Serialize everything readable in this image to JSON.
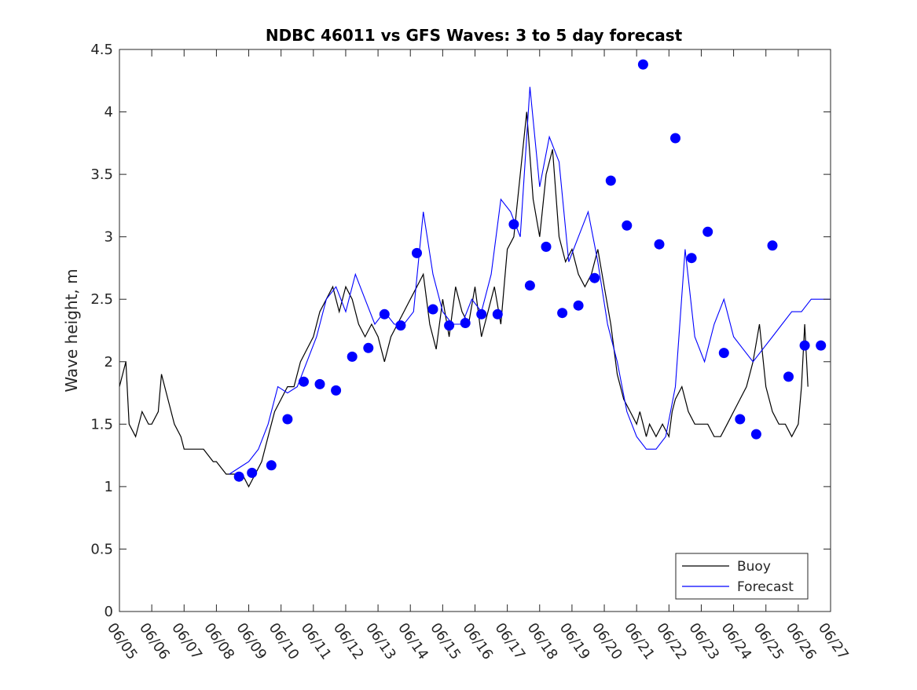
{
  "chart_data": {
    "type": "line",
    "title": "NDBC 46011 vs GFS Waves: 3 to 5 day forecast",
    "xlabel": "",
    "ylabel": "Wave height, m",
    "x_ticks": [
      "06/05",
      "06/06",
      "06/07",
      "06/08",
      "06/09",
      "06/10",
      "06/11",
      "06/12",
      "06/13",
      "06/14",
      "06/15",
      "06/16",
      "06/17",
      "06/18",
      "06/19",
      "06/20",
      "06/21",
      "06/22",
      "06/23",
      "06/24",
      "06/25",
      "06/26",
      "06/27"
    ],
    "y_ticks": [
      "0",
      "0.5",
      "1",
      "1.5",
      "2",
      "2.5",
      "3",
      "3.5",
      "4",
      "4.5"
    ],
    "xlim": [
      0,
      22
    ],
    "ylim": [
      0,
      4.5
    ],
    "grid": false,
    "legend": {
      "position": "bottom-right",
      "entries": [
        "Buoy",
        "Forecast"
      ]
    },
    "colors": {
      "buoy": "#000000",
      "forecast": "#0000ff",
      "markers": "#0000ff",
      "axes": "#262626"
    },
    "series": [
      {
        "name": "Buoy",
        "x_days_from_0605": [
          0,
          0.1,
          0.2,
          0.3,
          0.5,
          0.7,
          0.9,
          1.0,
          1.2,
          1.3,
          1.5,
          1.7,
          1.9,
          2.0,
          2.3,
          2.6,
          2.9,
          3.0,
          3.3,
          3.6,
          3.8,
          4.0,
          4.2,
          4.4,
          4.6,
          4.8,
          5.0,
          5.2,
          5.4,
          5.6,
          5.8,
          6.0,
          6.2,
          6.4,
          6.6,
          6.8,
          7.0,
          7.2,
          7.4,
          7.6,
          7.8,
          8.0,
          8.2,
          8.4,
          8.6,
          8.8,
          9.0,
          9.2,
          9.4,
          9.6,
          9.8,
          10.0,
          10.2,
          10.4,
          10.6,
          10.8,
          11.0,
          11.2,
          11.4,
          11.6,
          11.8,
          12.0,
          12.2,
          12.4,
          12.6,
          12.8,
          13.0,
          13.2,
          13.4,
          13.6,
          13.8,
          14.0,
          14.2,
          14.4,
          14.6,
          14.8,
          15.0,
          15.2,
          15.4,
          15.6,
          15.8,
          16.0,
          16.1,
          16.2,
          16.3,
          16.4,
          16.6,
          16.8,
          17.0,
          17.1,
          17.2,
          17.4,
          17.6,
          17.8,
          18.0,
          18.2,
          18.4,
          18.6,
          18.8,
          19.0,
          19.2,
          19.4,
          19.6,
          19.8,
          20.0,
          20.2,
          20.4,
          20.6,
          20.8,
          21.0,
          21.1,
          21.2,
          21.3
        ],
        "y": [
          1.8,
          1.9,
          2.0,
          1.5,
          1.4,
          1.6,
          1.5,
          1.5,
          1.6,
          1.9,
          1.7,
          1.5,
          1.4,
          1.3,
          1.3,
          1.3,
          1.2,
          1.2,
          1.1,
          1.1,
          1.1,
          1.0,
          1.1,
          1.2,
          1.4,
          1.6,
          1.7,
          1.8,
          1.8,
          2.0,
          2.1,
          2.2,
          2.4,
          2.5,
          2.6,
          2.4,
          2.6,
          2.5,
          2.3,
          2.2,
          2.3,
          2.2,
          2.0,
          2.2,
          2.3,
          2.4,
          2.5,
          2.6,
          2.7,
          2.3,
          2.1,
          2.5,
          2.2,
          2.6,
          2.4,
          2.3,
          2.6,
          2.2,
          2.4,
          2.6,
          2.3,
          2.9,
          3.0,
          3.5,
          4.0,
          3.3,
          3.0,
          3.5,
          3.7,
          3.0,
          2.8,
          2.9,
          2.7,
          2.6,
          2.7,
          2.9,
          2.6,
          2.3,
          1.9,
          1.7,
          1.6,
          1.5,
          1.6,
          1.5,
          1.4,
          1.5,
          1.4,
          1.5,
          1.4,
          1.6,
          1.7,
          1.8,
          1.6,
          1.5,
          1.5,
          1.5,
          1.4,
          1.4,
          1.5,
          1.6,
          1.7,
          1.8,
          2.0,
          2.3,
          1.8,
          1.6,
          1.5,
          1.5,
          1.4,
          1.5,
          1.8,
          2.3,
          1.8
        ]
      },
      {
        "name": "Forecast",
        "x_days_from_0605": [
          3.4,
          3.7,
          4.0,
          4.3,
          4.6,
          4.9,
          5.2,
          5.5,
          5.8,
          6.1,
          6.4,
          6.7,
          7.0,
          7.3,
          7.6,
          7.9,
          8.2,
          8.5,
          8.8,
          9.1,
          9.4,
          9.7,
          10.0,
          10.3,
          10.6,
          10.9,
          11.2,
          11.5,
          11.8,
          12.1,
          12.4,
          12.7,
          13.0,
          13.3,
          13.6,
          13.9,
          14.2,
          14.5,
          14.8,
          15.1,
          15.4,
          15.7,
          16.0,
          16.3,
          16.6,
          16.9,
          17.2,
          17.5,
          17.8,
          18.1,
          18.4,
          18.7,
          19.0,
          19.3,
          19.6,
          19.9,
          20.2,
          20.5,
          20.8,
          21.1,
          21.4,
          21.7,
          22.0
        ],
        "y": [
          1.1,
          1.15,
          1.2,
          1.3,
          1.5,
          1.8,
          1.75,
          1.8,
          2.0,
          2.2,
          2.5,
          2.6,
          2.4,
          2.7,
          2.5,
          2.3,
          2.4,
          2.3,
          2.3,
          2.4,
          3.2,
          2.7,
          2.4,
          2.3,
          2.3,
          2.5,
          2.4,
          2.7,
          3.3,
          3.2,
          3.0,
          4.2,
          3.4,
          3.8,
          3.6,
          2.8,
          3.0,
          3.2,
          2.8,
          2.3,
          2.0,
          1.6,
          1.4,
          1.3,
          1.3,
          1.4,
          1.8,
          2.9,
          2.2,
          2.0,
          2.3,
          2.5,
          2.2,
          2.1,
          2.0,
          2.1,
          2.2,
          2.3,
          2.4,
          2.4,
          2.5,
          2.5,
          2.5
        ]
      }
    ],
    "markers": {
      "name": "Forecast points",
      "x_days_from_0605": [
        3.7,
        4.1,
        4.7,
        5.2,
        5.7,
        6.2,
        6.7,
        7.2,
        7.7,
        8.2,
        8.7,
        9.2,
        9.7,
        10.2,
        10.7,
        11.2,
        11.7,
        12.2,
        12.7,
        13.2,
        13.7,
        14.2,
        14.7,
        15.2,
        15.7,
        16.2,
        16.7,
        17.2,
        17.7,
        18.2,
        18.7,
        19.2,
        19.7,
        20.2,
        20.7,
        21.2,
        21.7
      ],
      "y": [
        1.08,
        1.11,
        1.17,
        1.54,
        1.84,
        1.82,
        1.77,
        2.04,
        2.11,
        2.38,
        2.29,
        2.87,
        2.42,
        2.29,
        2.31,
        2.38,
        2.38,
        3.1,
        2.61,
        2.92,
        2.39,
        2.45,
        2.67,
        3.45,
        3.09,
        4.38,
        2.94,
        3.79,
        2.83,
        3.04,
        2.07,
        1.54,
        1.42,
        2.93,
        1.88,
        2.13,
        2.13
      ]
    }
  }
}
